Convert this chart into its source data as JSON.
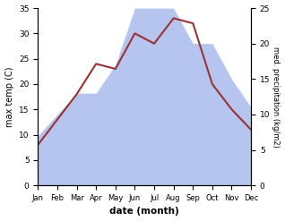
{
  "months": [
    "Jan",
    "Feb",
    "Mar",
    "Apr",
    "May",
    "Jun",
    "Jul",
    "Aug",
    "Sep",
    "Oct",
    "Nov",
    "Dec"
  ],
  "temp": [
    8,
    13,
    18,
    24,
    23,
    30,
    28,
    33,
    32,
    20,
    15,
    11
  ],
  "precip": [
    7,
    10,
    13,
    13,
    17,
    25,
    25,
    25,
    20,
    20,
    15,
    11
  ],
  "temp_color": "#993333",
  "precip_color": "#aabbee",
  "ylabel_left": "max temp (C)",
  "ylabel_right": "med. precipitation (kg/m2)",
  "xlabel": "date (month)",
  "ylim_left": [
    0,
    35
  ],
  "ylim_right": [
    0,
    25
  ],
  "yticks_left": [
    0,
    5,
    10,
    15,
    20,
    25,
    30,
    35
  ],
  "yticks_right": [
    0,
    5,
    10,
    15,
    20,
    25
  ],
  "bg_color": "#ffffff"
}
